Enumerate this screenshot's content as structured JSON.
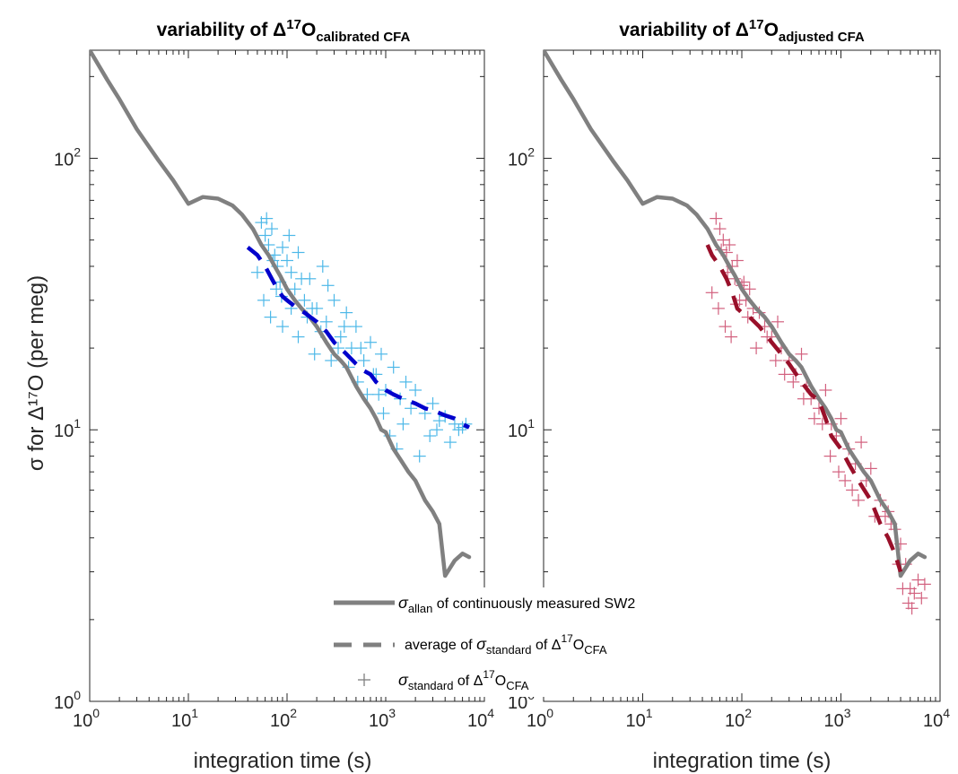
{
  "figure": {
    "ylabel": "σ for Δ¹⁷O (per meg)",
    "xlabel_left": "integration time (s)",
    "xlabel_right": "integration time (s)"
  },
  "chart_data": [
    {
      "type": "scatter",
      "title": "variability of Δ17O calibrated CFA",
      "title_parts": {
        "prefix": "variability of Δ",
        "sup": "17",
        "main": "O",
        "sub": "calibrated CFA"
      },
      "xlabel": "integration time (s)",
      "ylabel": "σ for Δ17O (per meg)",
      "x_scale": "log",
      "y_scale": "log",
      "xlim": [
        1,
        10000
      ],
      "ylim": [
        1,
        250
      ],
      "x_ticks": [
        "10^0",
        "10^1",
        "10^2",
        "10^3",
        "10^4"
      ],
      "y_ticks": [
        "10^0",
        "10^1",
        "10^2"
      ],
      "grid": false,
      "colors": {
        "allan": "#808080",
        "average": "#0000cc",
        "standard": "#4db8e8"
      },
      "series": [
        {
          "name": "σallan of continuously measured SW2",
          "style": "solid",
          "x": [
            1,
            1.5,
            2,
            3,
            5,
            7,
            10,
            14,
            20,
            28,
            35,
            45,
            55,
            65,
            75,
            85,
            100,
            120,
            140,
            170,
            200,
            250,
            300,
            350,
            400,
            500,
            600,
            700,
            800,
            900,
            1000,
            1200,
            1400,
            1700,
            2000,
            2500,
            3000,
            3500,
            4000,
            5000,
            6000,
            7000
          ],
          "y": [
            250,
            195,
            165,
            128,
            98,
            83,
            68,
            72,
            71,
            67,
            62,
            55,
            48,
            44,
            40,
            37,
            33,
            30,
            28,
            26,
            24,
            21,
            19,
            18,
            17,
            14.5,
            13,
            12,
            11,
            10,
            9.8,
            8.5,
            7.8,
            7,
            6.5,
            5.5,
            5,
            4.5,
            2.9,
            3.3,
            3.5,
            3.4
          ]
        },
        {
          "name": "average of σstandard of Δ17OCFA",
          "style": "dashed",
          "x": [
            40,
            50,
            60,
            70,
            80,
            90,
            100,
            120,
            150,
            200,
            250,
            300,
            400,
            500,
            600,
            700,
            800,
            1000,
            1200,
            1500,
            2000,
            2500,
            3000,
            4000,
            5000,
            6000,
            7000
          ],
          "y": [
            47,
            44,
            40,
            36,
            33,
            31,
            30,
            28.5,
            27,
            25,
            23,
            21,
            19,
            17.5,
            16.5,
            16,
            15,
            14,
            13.5,
            13,
            12.5,
            12,
            11.8,
            11.3,
            11,
            10.5,
            10.2
          ]
        },
        {
          "name": "σstandard of Δ17OCFA",
          "style": "markers",
          "marker": "+",
          "x": [
            55,
            60,
            65,
            70,
            75,
            80,
            85,
            90,
            100,
            110,
            120,
            130,
            150,
            170,
            200,
            230,
            250,
            300,
            350,
            400,
            450,
            500,
            600,
            700,
            800,
            900,
            1000,
            1200,
            1400,
            1600,
            1800,
            2000,
            2500,
            3000,
            3500,
            4000,
            5000,
            6000,
            50,
            58,
            68,
            78,
            90,
            110,
            130,
            160,
            190,
            220,
            280,
            330,
            420,
            520,
            650,
            750,
            950,
            1100,
            1300,
            1500,
            2200,
            2800,
            3300,
            4500,
            5500,
            6500,
            62,
            72,
            88,
            105,
            140,
            180,
            260,
            380,
            560,
            850
          ],
          "y": [
            58,
            52,
            48,
            55,
            44,
            40,
            35,
            47,
            42,
            38,
            33,
            45,
            30,
            36,
            28,
            40,
            25,
            30,
            22,
            27,
            20,
            24,
            18,
            21,
            16,
            19,
            14,
            17,
            13,
            15,
            12,
            14,
            11.5,
            12.5,
            10.8,
            11.2,
            10.5,
            10.2,
            38,
            30,
            26,
            33,
            24,
            28,
            22,
            26,
            19,
            23,
            18,
            20,
            17,
            15,
            13.5,
            16,
            11.5,
            9.5,
            8.5,
            10.5,
            8,
            9.5,
            10,
            9,
            10,
            10.5,
            60,
            42,
            31,
            52,
            36,
            28,
            34,
            24,
            20,
            13.5
          ]
        }
      ]
    },
    {
      "type": "scatter",
      "title": "variability of Δ17O adjusted CFA",
      "title_parts": {
        "prefix": "variability of Δ",
        "sup": "17",
        "main": "O",
        "sub": "adjusted CFA"
      },
      "xlabel": "integration time (s)",
      "x_scale": "log",
      "y_scale": "log",
      "xlim": [
        1,
        10000
      ],
      "ylim": [
        1,
        250
      ],
      "x_ticks": [
        "10^0",
        "10^1",
        "10^2",
        "10^3",
        "10^4"
      ],
      "y_ticks": [
        "10^0",
        "10^1",
        "10^2"
      ],
      "grid": false,
      "colors": {
        "allan": "#808080",
        "average": "#99102a",
        "standard": "#d2607e"
      },
      "series": [
        {
          "name": "σallan of continuously measured SW2",
          "style": "solid",
          "x": [
            1,
            1.5,
            2,
            3,
            5,
            7,
            10,
            14,
            20,
            28,
            35,
            45,
            55,
            65,
            75,
            85,
            100,
            120,
            140,
            170,
            200,
            250,
            300,
            350,
            400,
            500,
            600,
            700,
            800,
            900,
            1000,
            1200,
            1400,
            1700,
            2000,
            2500,
            3000,
            3500,
            4000,
            5000,
            6000,
            7000
          ],
          "y": [
            250,
            195,
            165,
            128,
            98,
            83,
            68,
            72,
            71,
            67,
            62,
            55,
            48,
            44,
            40,
            37,
            33,
            30,
            28,
            26,
            24,
            21,
            19,
            18,
            17,
            14.5,
            13,
            12,
            11,
            10,
            9.8,
            8.5,
            7.8,
            7,
            6.5,
            5.5,
            5,
            4.5,
            2.9,
            3.3,
            3.5,
            3.4
          ]
        },
        {
          "name": "average of σstandard of Δ17OCFA",
          "style": "dashed",
          "x": [
            45,
            50,
            60,
            70,
            80,
            90,
            100,
            120,
            150,
            200,
            250,
            300,
            400,
            500,
            600,
            700,
            800,
            1000,
            1200,
            1500,
            2000,
            2500,
            3000,
            3500,
            4000
          ],
          "y": [
            48,
            44,
            40,
            36,
            32,
            28,
            27,
            26,
            24,
            21,
            19,
            17.5,
            15,
            13.5,
            12.8,
            11,
            9.5,
            8.5,
            7.5,
            6.5,
            5.5,
            4.5,
            4,
            3.5,
            3
          ]
        },
        {
          "name": "σstandard of Δ17OCFA",
          "style": "markers",
          "marker": "+",
          "x": [
            55,
            60,
            65,
            70,
            75,
            80,
            85,
            90,
            100,
            110,
            120,
            130,
            150,
            170,
            200,
            230,
            250,
            300,
            350,
            400,
            450,
            500,
            600,
            700,
            800,
            900,
            1000,
            1200,
            1400,
            1600,
            1800,
            2000,
            2500,
            3000,
            3500,
            4000,
            4500,
            5000,
            5500,
            6000,
            6500,
            7000,
            50,
            58,
            68,
            78,
            95,
            115,
            140,
            180,
            220,
            270,
            330,
            420,
            540,
            650,
            780,
            950,
            1100,
            1300,
            1500,
            2200,
            2800,
            3200,
            3800,
            4200,
            4800,
            5200,
            62,
            72,
            88,
            105
          ],
          "y": [
            60,
            55,
            50,
            45,
            48,
            40,
            36,
            42,
            34,
            30,
            33,
            28,
            27,
            24,
            22,
            25,
            20,
            18,
            16,
            19,
            14.5,
            13,
            12,
            14,
            10.5,
            9.5,
            11,
            8.5,
            7.5,
            9,
            6.5,
            7.2,
            5.5,
            5,
            4.3,
            3.8,
            3.2,
            2.6,
            2.5,
            2.8,
            2.4,
            2.7,
            32,
            28,
            24,
            22,
            30,
            26,
            20,
            22,
            18,
            16,
            15,
            13,
            11,
            10.5,
            8,
            7,
            6.5,
            6,
            5.5,
            4.8,
            4.8,
            4.5,
            3.2,
            2.6,
            2.3,
            2.2,
            46,
            38,
            29,
            35
          ]
        }
      ]
    }
  ],
  "legend": {
    "placement": "bottom-center",
    "items": [
      {
        "symbol": "solid",
        "color": "#808080",
        "sigma": "σ",
        "sub": "allan",
        "text": " of continuously measured SW2"
      },
      {
        "symbol": "dashed",
        "color": "#808080",
        "pre": "average of ",
        "sigma": "σ",
        "sub": "standard",
        "mid": " of  Δ",
        "sup": "17",
        "tail": "O",
        "sub2": "CFA"
      },
      {
        "symbol": "plus",
        "color": "#808080",
        "sigma": "σ",
        "sub": "standard",
        "mid": " of Δ",
        "sup": "17",
        "tail": "O",
        "sub2": "CFA"
      }
    ]
  }
}
